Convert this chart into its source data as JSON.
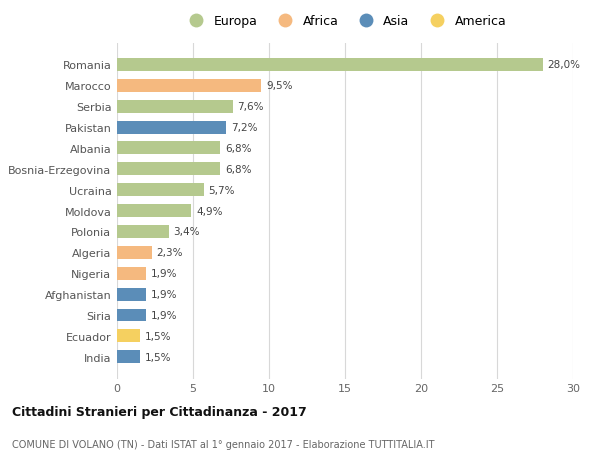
{
  "countries": [
    "India",
    "Ecuador",
    "Siria",
    "Afghanistan",
    "Nigeria",
    "Algeria",
    "Polonia",
    "Moldova",
    "Ucraina",
    "Bosnia-Erzegovina",
    "Albania",
    "Pakistan",
    "Serbia",
    "Marocco",
    "Romania"
  ],
  "values": [
    1.5,
    1.5,
    1.9,
    1.9,
    1.9,
    2.3,
    3.4,
    4.9,
    5.7,
    6.8,
    6.8,
    7.2,
    7.6,
    9.5,
    28.0
  ],
  "continents": [
    "Asia",
    "America",
    "Asia",
    "Asia",
    "Africa",
    "Africa",
    "Europa",
    "Europa",
    "Europa",
    "Europa",
    "Europa",
    "Asia",
    "Europa",
    "Africa",
    "Europa"
  ],
  "colors": {
    "Europa": "#b5c98e",
    "Africa": "#f5b97f",
    "Asia": "#5b8db8",
    "America": "#f5d060"
  },
  "title": "Cittadini Stranieri per Cittadinanza - 2017",
  "subtitle": "COMUNE DI VOLANO (TN) - Dati ISTAT al 1° gennaio 2017 - Elaborazione TUTTITALIA.IT",
  "xlim": [
    0,
    30
  ],
  "xticks": [
    0,
    5,
    10,
    15,
    20,
    25,
    30
  ],
  "background_color": "#ffffff",
  "bar_height": 0.62,
  "grid_color": "#d8d8d8"
}
